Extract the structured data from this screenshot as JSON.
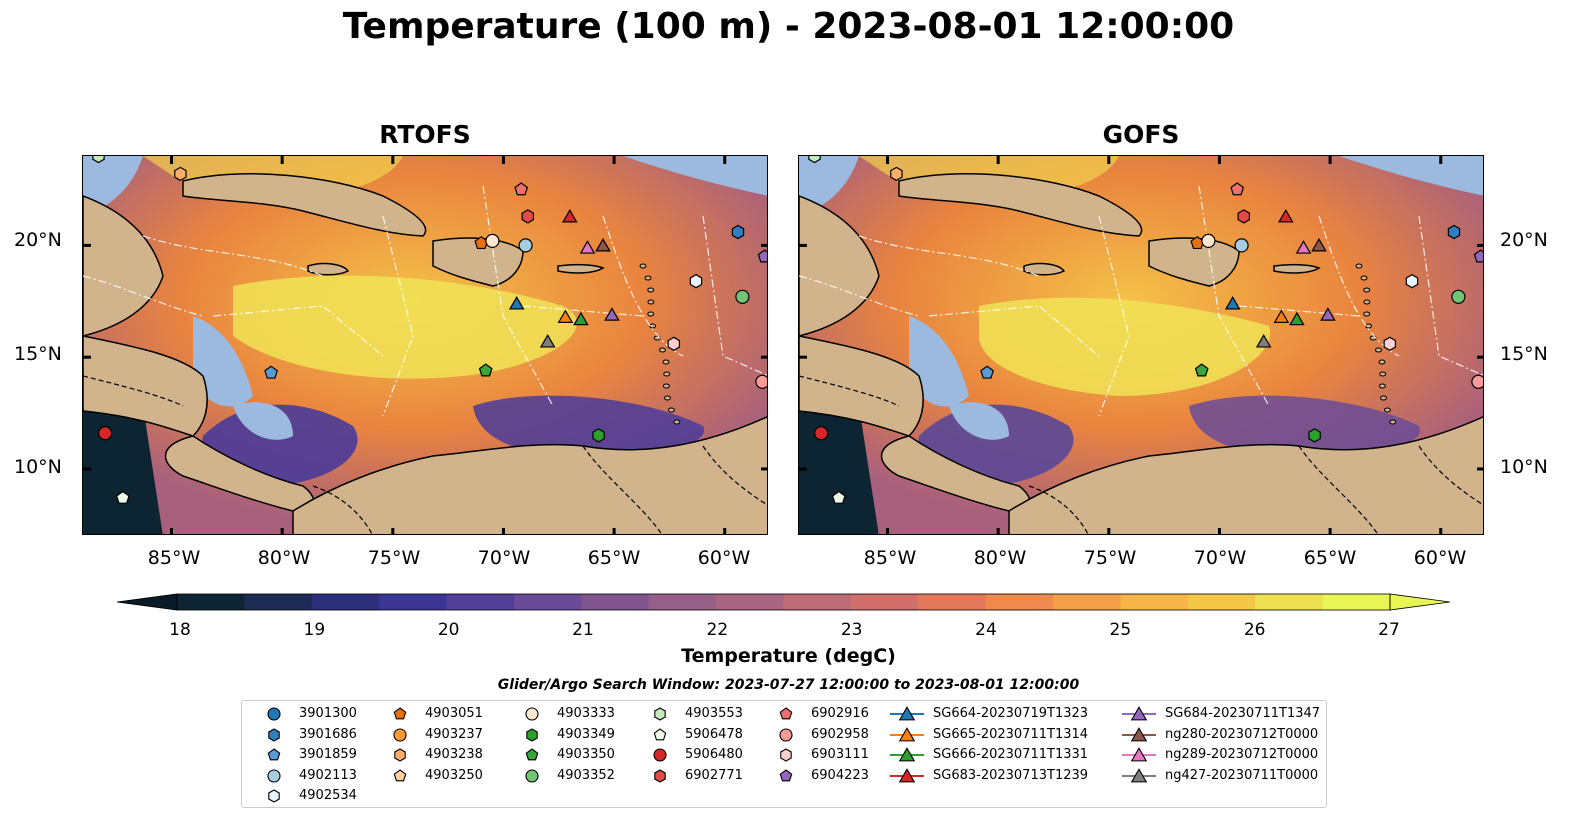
{
  "title": "Temperature (100 m) - 2023-08-01 12:00:00",
  "panels": [
    {
      "title": "RTOFS"
    },
    {
      "title": "GOFS"
    }
  ],
  "axes": {
    "lat_labels": [
      "20°N",
      "15°N",
      "10°N"
    ],
    "lon_labels": [
      "85°W",
      "80°W",
      "75°W",
      "70°W",
      "65°W",
      "60°W"
    ]
  },
  "colorbar": {
    "label": "Temperature (degC)",
    "ticks": [
      "18",
      "19",
      "20",
      "21",
      "22",
      "23",
      "24",
      "25",
      "26",
      "27"
    ],
    "range": [
      18,
      27
    ],
    "colors": [
      "#0d2433",
      "#1e2b55",
      "#2d2f7a",
      "#3d3594",
      "#523f9a",
      "#6a4b98",
      "#80558f",
      "#955f88",
      "#a96683",
      "#be6c78",
      "#d1706a",
      "#e2795a",
      "#ef8a4e",
      "#f59f48",
      "#f7b447",
      "#f4c748",
      "#ede152",
      "#e8f655"
    ]
  },
  "map_colors": {
    "land": "#d2b48c",
    "shelf": "#9cb9e0",
    "sea_warm": "#f5c148",
    "sea_mid": "#e9843f",
    "sea_cool": "#a8607d",
    "sea_cold": "#4a3b9a",
    "sea_deep": "#0d2433"
  },
  "legend": {
    "title": "Glider/Argo Search Window: 2023-07-27 12:00:00 to 2023-08-01 12:00:00",
    "columns": [
      [
        {
          "label": "3901300",
          "marker": "circle",
          "color": "#1f77b4"
        },
        {
          "label": "3901686",
          "marker": "hexagon",
          "color": "#2f7fc0"
        },
        {
          "label": "3901859",
          "marker": "pentagon",
          "color": "#5a9bd5"
        },
        {
          "label": "4902113",
          "marker": "circle",
          "color": "#a6cee3"
        },
        {
          "label": "4902534",
          "marker": "hexagon",
          "color": "#e8f4fb"
        }
      ],
      [
        {
          "label": "4903051",
          "marker": "pentagon",
          "color": "#e6700f"
        },
        {
          "label": "4903237",
          "marker": "circle",
          "color": "#ff9933"
        },
        {
          "label": "4903238",
          "marker": "hexagon",
          "color": "#fdae6b"
        },
        {
          "label": "4903250",
          "marker": "pentagon",
          "color": "#fdd0a2"
        }
      ],
      [
        {
          "label": "4903333",
          "marker": "circle",
          "color": "#fde5d0"
        },
        {
          "label": "4903349",
          "marker": "hexagon",
          "color": "#2ca02c"
        },
        {
          "label": "4903350",
          "marker": "pentagon",
          "color": "#3aa53a"
        },
        {
          "label": "4903352",
          "marker": "circle",
          "color": "#74c476"
        }
      ],
      [
        {
          "label": "4903553",
          "marker": "hexagon",
          "color": "#c7e9c0"
        },
        {
          "label": "5906478",
          "marker": "pentagon",
          "color": "#edf8e9"
        },
        {
          "label": "5906480",
          "marker": "circle",
          "color": "#d62728"
        },
        {
          "label": "6902771",
          "marker": "hexagon",
          "color": "#e34a4a"
        }
      ],
      [
        {
          "label": "6902916",
          "marker": "pentagon",
          "color": "#f07070"
        },
        {
          "label": "6902958",
          "marker": "circle",
          "color": "#fc9a9a"
        },
        {
          "label": "6903111",
          "marker": "hexagon",
          "color": "#fdd0d0"
        },
        {
          "label": "6904223",
          "marker": "pentagon",
          "color": "#9467bd"
        }
      ],
      [
        {
          "label": "SG664-20230719T1323",
          "marker": "triangle-line",
          "color": "#1f77b4"
        },
        {
          "label": "SG665-20230711T1314",
          "marker": "triangle-line",
          "color": "#ff7f0e"
        },
        {
          "label": "SG666-20230711T1331",
          "marker": "triangle-line",
          "color": "#2ca02c"
        },
        {
          "label": "SG683-20230713T1239",
          "marker": "triangle-line",
          "color": "#d62728"
        }
      ],
      [
        {
          "label": "SG684-20230711T1347",
          "marker": "triangle-line",
          "color": "#9467bd"
        },
        {
          "label": "ng280-20230712T0000",
          "marker": "triangle-line",
          "color": "#8c564b"
        },
        {
          "label": "ng289-20230712T0000",
          "marker": "triangle-line",
          "color": "#e377c2"
        },
        {
          "label": "ng427-20230711T0000",
          "marker": "triangle-line",
          "color": "#7f7f7f"
        }
      ]
    ]
  },
  "map_markers": [
    {
      "label": "3901686",
      "marker": "hexagon",
      "color": "#2f7fc0",
      "lon": -59.4,
      "lat": 20.6
    },
    {
      "label": "3901859",
      "marker": "pentagon",
      "color": "#5a9bd5",
      "lon": -80.5,
      "lat": 14.3
    },
    {
      "label": "4902113",
      "marker": "circle",
      "color": "#a6cee3",
      "lon": -69.0,
      "lat": 20.0
    },
    {
      "label": "4902534",
      "marker": "hexagon",
      "color": "#e8f4fb",
      "lon": -61.3,
      "lat": 18.4
    },
    {
      "label": "4903051",
      "marker": "pentagon",
      "color": "#e6700f",
      "lon": -71.0,
      "lat": 20.1
    },
    {
      "label": "4903333",
      "marker": "circle",
      "color": "#fde5d0",
      "lon": -70.5,
      "lat": 20.2
    },
    {
      "label": "4903350",
      "marker": "pentagon",
      "color": "#3aa53a",
      "lon": -70.8,
      "lat": 14.4
    },
    {
      "label": "4903352",
      "marker": "circle",
      "color": "#74c476",
      "lon": -59.2,
      "lat": 17.7
    },
    {
      "label": "4903349",
      "marker": "hexagon",
      "color": "#2ca02c",
      "lon": -65.7,
      "lat": 11.5
    },
    {
      "label": "4903553",
      "marker": "hexagon",
      "color": "#c7e9c0",
      "lon": -88.3,
      "lat": 24.0
    },
    {
      "label": "5906478",
      "marker": "pentagon",
      "color": "#edf8e9",
      "lon": -87.2,
      "lat": 8.7
    },
    {
      "label": "5906480",
      "marker": "circle",
      "color": "#d62728",
      "lon": -88.0,
      "lat": 11.6
    },
    {
      "label": "6902771",
      "marker": "hexagon",
      "color": "#e34a4a",
      "lon": -68.9,
      "lat": 21.3
    },
    {
      "label": "6902916",
      "marker": "pentagon",
      "color": "#f07070",
      "lon": -69.2,
      "lat": 22.5
    },
    {
      "label": "6902958",
      "marker": "circle",
      "color": "#fc9a9a",
      "lon": -58.3,
      "lat": 13.9
    },
    {
      "label": "6903111",
      "marker": "hexagon",
      "color": "#fdd0d0",
      "lon": -62.3,
      "lat": 15.6
    },
    {
      "label": "6904223",
      "marker": "pentagon",
      "color": "#9467bd",
      "lon": -58.2,
      "lat": 19.5
    },
    {
      "label": "4903238",
      "marker": "hexagon",
      "color": "#fdae6b",
      "lon": -84.6,
      "lat": 23.2
    },
    {
      "label": "SG664-20230719T1323",
      "marker": "triangle",
      "color": "#1f77b4",
      "lon": -69.4,
      "lat": 17.4
    },
    {
      "label": "SG665-20230711T1314",
      "marker": "triangle",
      "color": "#ff7f0e",
      "lon": -67.2,
      "lat": 16.8
    },
    {
      "label": "SG666-20230711T1331",
      "marker": "triangle",
      "color": "#2ca02c",
      "lon": -66.5,
      "lat": 16.7
    },
    {
      "label": "SG683-20230713T1239",
      "marker": "triangle",
      "color": "#d62728",
      "lon": -67.0,
      "lat": 21.3
    },
    {
      "label": "SG684-20230711T1347",
      "marker": "triangle",
      "color": "#9467bd",
      "lon": -65.1,
      "lat": 16.9
    },
    {
      "label": "ng280-20230712T0000",
      "marker": "triangle",
      "color": "#8c564b",
      "lon": -65.5,
      "lat": 20.0
    },
    {
      "label": "ng289-20230712T0000",
      "marker": "triangle",
      "color": "#e377c2",
      "lon": -66.2,
      "lat": 19.9
    },
    {
      "label": "ng427-20230711T0000",
      "marker": "triangle",
      "color": "#7f7f7f",
      "lon": -68.0,
      "lat": 15.7
    }
  ],
  "map_extent": {
    "lon_min": -89.0,
    "lon_max": -58.0,
    "lat_min": 7.0,
    "lat_max": 24.0
  }
}
